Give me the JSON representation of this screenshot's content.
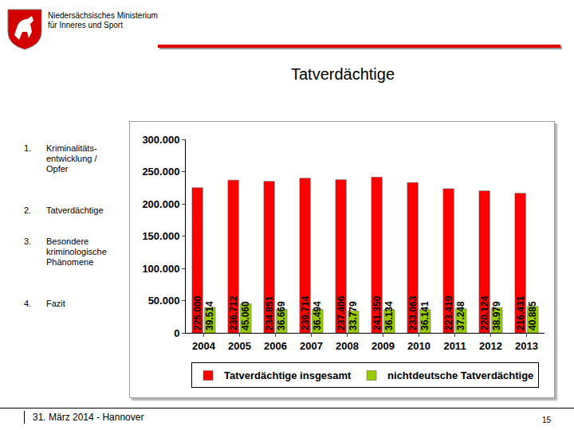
{
  "slide": {
    "header": [
      "Niedersächsisches Ministerium",
      "für Inneres und Sport"
    ],
    "title": "Tatverdächtige",
    "menu": [
      {
        "number": "1.",
        "text": "Kriminalitäts-entwicklung / Opfer"
      },
      {
        "number": "2.",
        "text": "Tatverdächtige"
      },
      {
        "number": "3.",
        "text": "Besondere kriminologische Phänomene"
      },
      {
        "number": "4.",
        "text": "Fazit"
      }
    ],
    "footer": "31. März 2014 - Hannover",
    "page": "15"
  },
  "chart_data": {
    "type": "bar",
    "categories": [
      "2004",
      "2005",
      "2006",
      "2007",
      "2008",
      "2009",
      "2010",
      "2011",
      "2012",
      "2013"
    ],
    "series": [
      {
        "name": "Tatverdächtige insgesamt",
        "color": "#ff0000",
        "values": [
          225000,
          236712,
          234851,
          239714,
          237406,
          241350,
          233063,
          223419,
          220124,
          216431
        ],
        "value_labels": [
          "225.000",
          "236.712",
          "234.851",
          "239.714",
          "237.406",
          "241.350",
          "233.063",
          "223.419",
          "220.124",
          "216.431"
        ]
      },
      {
        "name": "nichtdeutsche Tatverdächtige",
        "color": "#99cc00",
        "values": [
          39514,
          45060,
          36669,
          36494,
          33779,
          36134,
          36141,
          37248,
          38979,
          40885
        ],
        "value_labels": [
          "39.514",
          "45.060",
          "36.669",
          "36.494",
          "33.779",
          "36.134",
          "36.141",
          "37.248",
          "38.979",
          "40.885"
        ]
      }
    ],
    "ylim": [
      0,
      300000
    ],
    "yticks": [
      0,
      {
        "value": 50000,
        "label": "50.000"
      },
      {
        "value": 100000,
        "label": "100.000"
      },
      {
        "value": 150000,
        "label": "150.000"
      },
      {
        "value": 200000,
        "label": "200.000"
      },
      {
        "value": 250000,
        "label": "250.000"
      },
      {
        "value": 300000,
        "label": "300.000"
      }
    ],
    "grid": false,
    "legend": "bottom",
    "data_labels": true
  }
}
